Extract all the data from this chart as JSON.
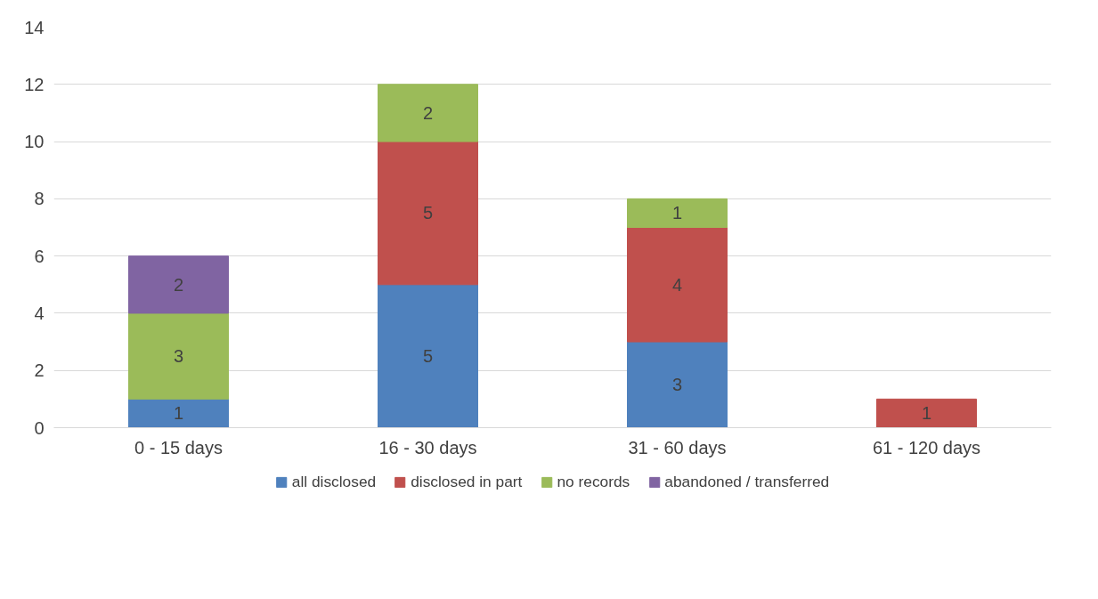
{
  "chart_data": {
    "type": "bar",
    "stacked": true,
    "categories": [
      "0 - 15 days",
      "16 - 30 days",
      "31 - 60 days",
      "61 - 120 days"
    ],
    "series": [
      {
        "name": "all disclosed",
        "color": "#4f81bd",
        "values": [
          1,
          5,
          3,
          null
        ]
      },
      {
        "name": "disclosed in part",
        "color": "#c0504d",
        "values": [
          null,
          5,
          4,
          1
        ]
      },
      {
        "name": "no records",
        "color": "#9bbb59",
        "values": [
          3,
          2,
          1,
          null
        ]
      },
      {
        "name": "abandoned / transferred",
        "color": "#8064a2",
        "values": [
          2,
          null,
          null,
          null
        ]
      }
    ],
    "ylim": [
      0,
      14
    ],
    "yticks": [
      0,
      2,
      4,
      6,
      8,
      10,
      12,
      14
    ],
    "grid": "y",
    "legend": "bottom",
    "data_labels": true
  }
}
